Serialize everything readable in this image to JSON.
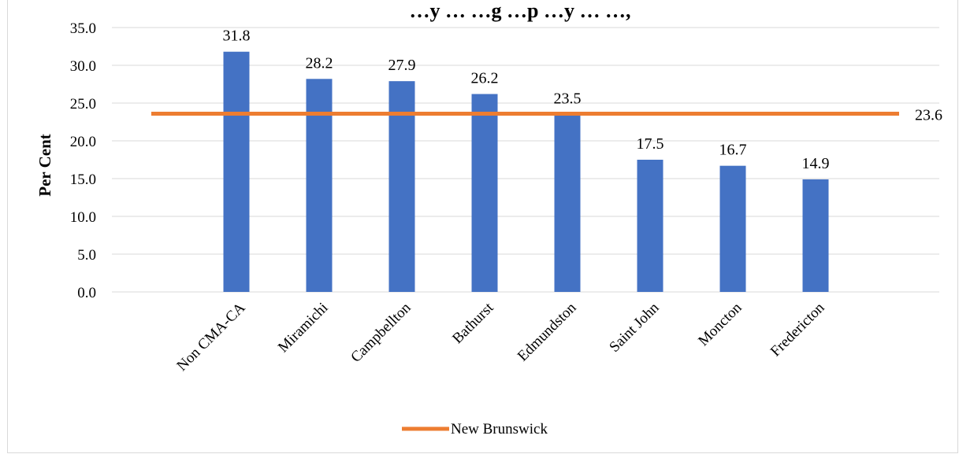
{
  "chart_data": {
    "type": "bar",
    "title": "…y … …g …p …y … …,",
    "ylabel": "Per Cent",
    "xlabel": "",
    "ylim": [
      0,
      35
    ],
    "yticks": [
      "0.0",
      "5.0",
      "10.0",
      "15.0",
      "20.0",
      "25.0",
      "30.0",
      "35.0"
    ],
    "categories": [
      "Non CMA-CA",
      "Miramichi",
      "Campbellton",
      "Bathurst",
      "Edmundston",
      "Saint John",
      "Moncton",
      "Fredericton"
    ],
    "values": [
      31.8,
      28.2,
      27.9,
      26.2,
      23.5,
      17.5,
      16.7,
      14.9
    ],
    "value_labels": [
      "31.8",
      "28.2",
      "27.9",
      "26.2",
      "23.5",
      "17.5",
      "16.7",
      "14.9"
    ],
    "reference_line": {
      "name": "New Brunswick",
      "value": 23.6,
      "label": "23.6"
    },
    "grid": true,
    "legend_position": "bottom",
    "colors": {
      "bars": "#4472c4",
      "line": "#ed7d31",
      "grid": "#d9d9d9"
    }
  }
}
